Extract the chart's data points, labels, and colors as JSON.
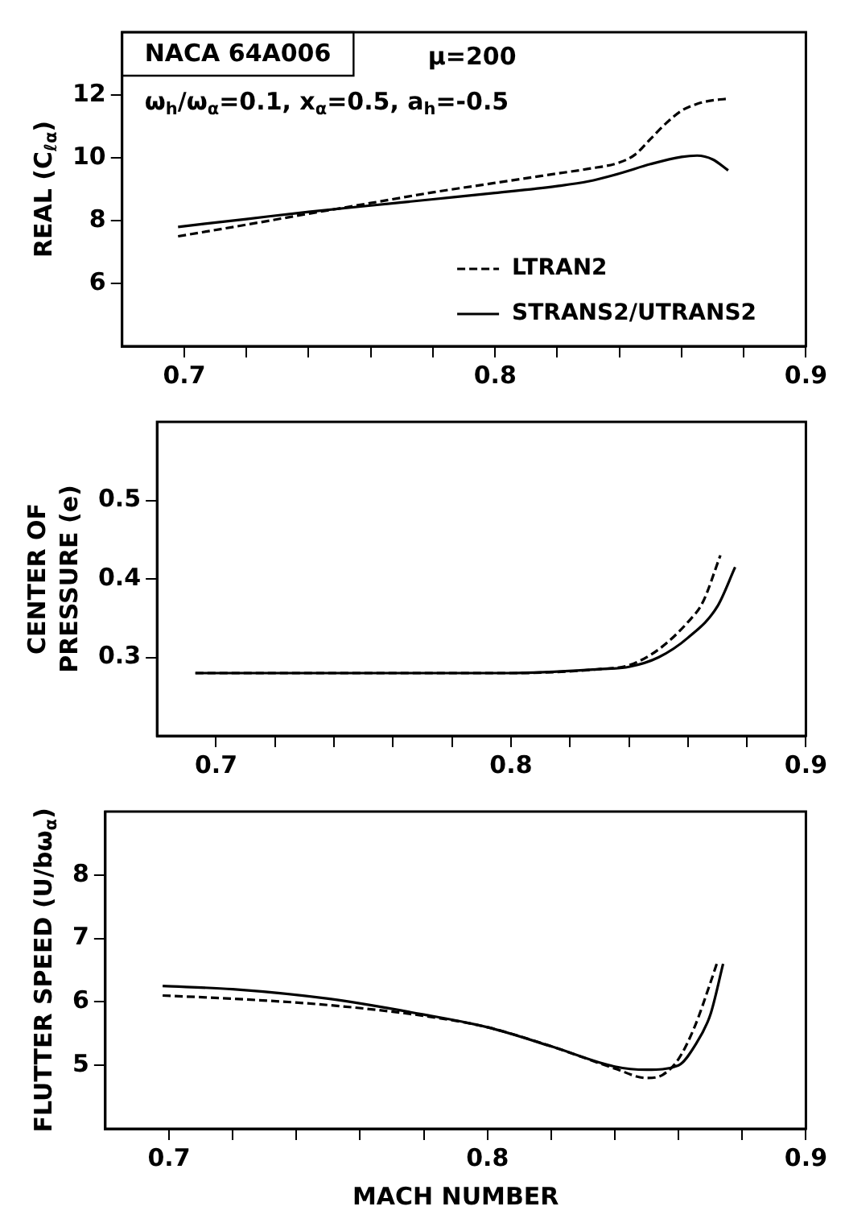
{
  "chart_data": [
    {
      "type": "line",
      "ylabel": "REAL (C$_{ℓα}$)",
      "annotations": [
        "NACA 64A006",
        "μ=200",
        "ω$_{h}$/ω$_{α}$=0.1, x$_{α}$=0.5, a$_{h}$=-0.5"
      ],
      "xlim": [
        0.68,
        0.9
      ],
      "xticks": [
        0.7,
        {
          "value": 0.72,
          "label": null
        },
        {
          "value": 0.74,
          "label": null
        },
        {
          "value": 0.76,
          "label": null
        },
        {
          "value": 0.78,
          "label": null
        },
        0.8,
        {
          "value": 0.82,
          "label": null
        },
        {
          "value": 0.84,
          "label": null
        },
        {
          "value": 0.86,
          "label": null
        },
        {
          "value": 0.88,
          "label": null
        },
        0.9
      ],
      "ylim": [
        4,
        14
      ],
      "yticks": [
        6,
        8,
        10,
        12
      ],
      "grid": false,
      "marker": "none",
      "legend": "bottom right",
      "series": [
        {
          "name": "LTRAN2",
          "color": "#000000",
          "line_style": "dashed",
          "x": [
            0.698,
            0.72,
            0.74,
            0.76,
            0.78,
            0.8,
            0.82,
            0.83,
            0.84,
            0.845,
            0.85,
            0.855,
            0.86,
            0.865,
            0.87,
            0.875
          ],
          "values": [
            7.5,
            7.87,
            8.22,
            8.56,
            8.9,
            9.2,
            9.5,
            9.65,
            9.85,
            10.1,
            10.6,
            11.1,
            11.5,
            11.72,
            11.83,
            11.88
          ]
        },
        {
          "name": "STRANS2/UTRANS2",
          "color": "#000000",
          "line_style": "solid",
          "x": [
            0.698,
            0.72,
            0.74,
            0.76,
            0.78,
            0.8,
            0.82,
            0.83,
            0.84,
            0.85,
            0.86,
            0.865,
            0.87,
            0.875
          ],
          "values": [
            7.8,
            8.05,
            8.28,
            8.48,
            8.68,
            8.88,
            9.1,
            9.25,
            9.5,
            9.8,
            10.03,
            10.07,
            9.95,
            9.6
          ]
        }
      ]
    },
    {
      "type": "line",
      "ylabel": "CENTER OF\nPRESSURE (e)",
      "xlim": [
        0.68,
        0.9
      ],
      "xticks": [
        0.7,
        {
          "value": 0.72,
          "label": null
        },
        {
          "value": 0.74,
          "label": null
        },
        {
          "value": 0.76,
          "label": null
        },
        {
          "value": 0.78,
          "label": null
        },
        0.8,
        {
          "value": 0.82,
          "label": null
        },
        {
          "value": 0.84,
          "label": null
        },
        {
          "value": 0.86,
          "label": null
        },
        {
          "value": 0.88,
          "label": null
        },
        0.9
      ],
      "ylim": [
        0.2,
        0.6
      ],
      "yticks": [
        0.3,
        0.4,
        0.5
      ],
      "grid": false,
      "marker": "none",
      "series": [
        {
          "color": "#000000",
          "line_style": "dashed",
          "x": [
            0.693,
            0.72,
            0.76,
            0.8,
            0.83,
            0.84,
            0.85,
            0.86,
            0.865,
            0.871
          ],
          "values": [
            0.28,
            0.28,
            0.28,
            0.28,
            0.285,
            0.29,
            0.31,
            0.345,
            0.37,
            0.43
          ]
        },
        {
          "color": "#000000",
          "line_style": "solid",
          "x": [
            0.693,
            0.72,
            0.76,
            0.8,
            0.83,
            0.84,
            0.85,
            0.86,
            0.87,
            0.876
          ],
          "values": [
            0.28,
            0.28,
            0.28,
            0.28,
            0.285,
            0.288,
            0.3,
            0.325,
            0.365,
            0.415
          ]
        }
      ]
    },
    {
      "type": "line",
      "ylabel": "FLUTTER SPEED (U/bω$_{α}$)",
      "xlabel": "MACH NUMBER",
      "xlim": [
        0.68,
        0.9
      ],
      "xticks": [
        0.7,
        {
          "value": 0.72,
          "label": null
        },
        {
          "value": 0.74,
          "label": null
        },
        {
          "value": 0.76,
          "label": null
        },
        {
          "value": 0.78,
          "label": null
        },
        0.8,
        {
          "value": 0.82,
          "label": null
        },
        {
          "value": 0.84,
          "label": null
        },
        {
          "value": 0.86,
          "label": null
        },
        {
          "value": 0.88,
          "label": null
        },
        0.9
      ],
      "ylim": [
        4,
        9
      ],
      "yticks": [
        5,
        6,
        7,
        8
      ],
      "grid": false,
      "marker": "none",
      "series": [
        {
          "color": "#000000",
          "line_style": "dashed",
          "x": [
            0.698,
            0.72,
            0.75,
            0.78,
            0.8,
            0.82,
            0.84,
            0.85,
            0.855,
            0.86,
            0.865,
            0.87,
            0.872
          ],
          "values": [
            6.1,
            6.05,
            5.95,
            5.78,
            5.6,
            5.3,
            4.95,
            4.8,
            4.85,
            5.1,
            5.6,
            6.3,
            6.6
          ]
        },
        {
          "color": "#000000",
          "line_style": "solid",
          "x": [
            0.698,
            0.72,
            0.75,
            0.78,
            0.8,
            0.82,
            0.84,
            0.85,
            0.86,
            0.865,
            0.87,
            0.874
          ],
          "values": [
            6.25,
            6.2,
            6.05,
            5.8,
            5.6,
            5.3,
            4.98,
            4.93,
            5.0,
            5.3,
            5.8,
            6.6
          ]
        }
      ]
    }
  ]
}
